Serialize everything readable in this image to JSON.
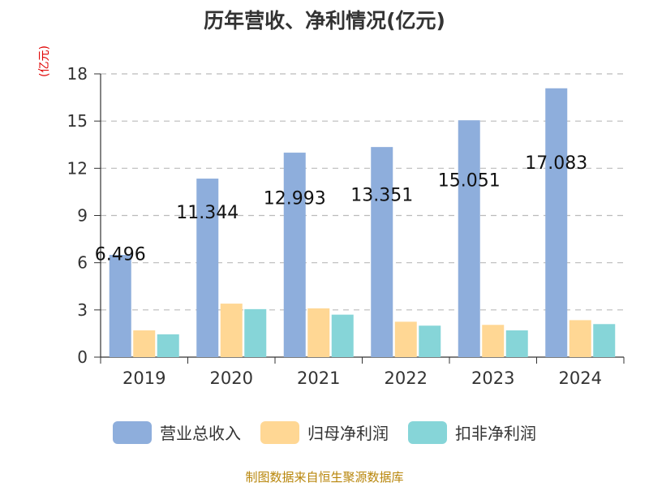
{
  "chart_data": {
    "type": "bar",
    "title": "历年营收、净利情况(亿元)",
    "ylabel": "(亿元)",
    "categories": [
      "2019",
      "2020",
      "2021",
      "2022",
      "2023",
      "2024"
    ],
    "ylim": [
      0,
      18
    ],
    "yticks": [
      0,
      3,
      6,
      9,
      12,
      15,
      18
    ],
    "grid": true,
    "legend_position": "bottom",
    "series": [
      {
        "name": "营业总收入",
        "color": "#8eaedc",
        "values": [
          6.496,
          11.344,
          12.993,
          13.351,
          15.051,
          17.083
        ],
        "data_labels": [
          "6.496",
          "11.344",
          "12.993",
          "13.351",
          "15.051",
          "17.083"
        ]
      },
      {
        "name": "归母净利润",
        "color": "#ffd794",
        "values": [
          1.7,
          3.4,
          3.1,
          2.25,
          2.05,
          2.35
        ]
      },
      {
        "name": "扣非净利润",
        "color": "#86d5d8",
        "values": [
          1.45,
          3.05,
          2.7,
          2.0,
          1.7,
          2.1
        ]
      }
    ]
  },
  "source": "制图数据来自恒生聚源数据库"
}
